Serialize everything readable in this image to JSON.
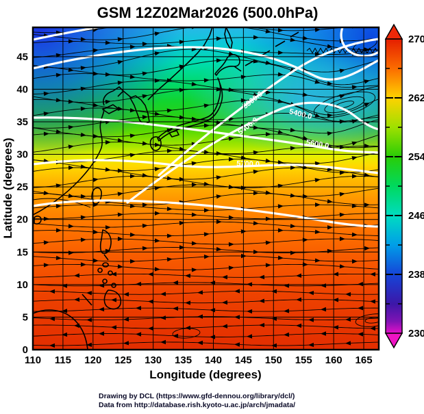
{
  "title": "GSM 12Z02Mar2026 (500.0hPa)",
  "axes": {
    "x": {
      "label": "Longitude (degrees)",
      "ticks": [
        "110",
        "115",
        "120",
        "125",
        "130",
        "135",
        "140",
        "145",
        "150",
        "155",
        "160",
        "165"
      ]
    },
    "y": {
      "label": "Latitude  (degrees)",
      "ticks": [
        "0",
        "5",
        "10",
        "15",
        "20",
        "25",
        "30",
        "35",
        "40",
        "45"
      ]
    }
  },
  "colorbar": {
    "major_ticks": [
      "270",
      "262",
      "254",
      "246",
      "238",
      "230"
    ],
    "minor_step": 4,
    "top_value": 270,
    "bottom_value": 230
  },
  "contours": {
    "labels": [
      "5300.0",
      "5400.0",
      "5400.0",
      "5600.0",
      "5700.0"
    ]
  },
  "credits": {
    "line1": "Drawing by DCL (https://www.gfd-dennou.org/library/dcl/)",
    "line2": "Data from http://database.rish.kyoto-u.ac.jp/arch/jmadata/"
  },
  "chart_data": {
    "type": "heatmap",
    "title": "GSM 12Z02Mar2026 (500.0hPa)",
    "xlabel": "Longitude (degrees)",
    "ylabel": "Latitude (degrees)",
    "xlim": [
      110,
      167.5
    ],
    "ylim": [
      0,
      49.5
    ],
    "x_ticks": [
      110,
      115,
      120,
      125,
      130,
      135,
      140,
      145,
      150,
      155,
      160,
      165
    ],
    "y_ticks": [
      0,
      5,
      10,
      15,
      20,
      25,
      30,
      35,
      40,
      45
    ],
    "grid": true,
    "colorbar_ticks": [
      270,
      262,
      254,
      246,
      238,
      230
    ],
    "colorbar_range": [
      230,
      270
    ],
    "colorbar_colors": {
      "270": "#e51e00",
      "262": "#ffd200",
      "254": "#29cd06",
      "246": "#00dcc0",
      "238": "#1545d8",
      "230": "#e410c8"
    },
    "labeled_contour_levels": [
      5300,
      5400,
      5600,
      5700
    ],
    "layers": [
      "color shading (cold north / warm south)",
      "black streamlines with arrows (westerlies, tropical easterlies)",
      "white geopotential-height contours with labels",
      "coastlines (East Asia, Japan, Philippines)",
      "5-degree latitude/longitude grid"
    ]
  }
}
